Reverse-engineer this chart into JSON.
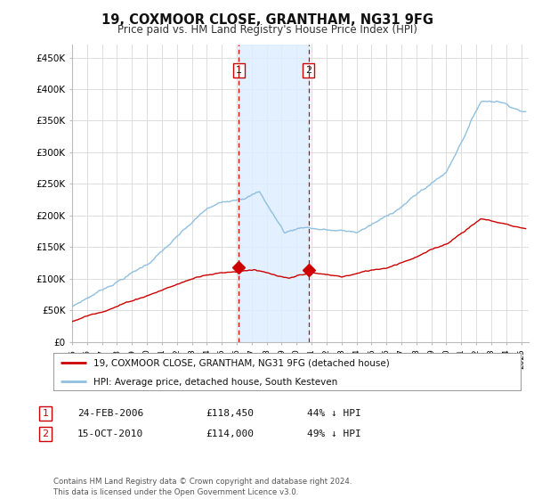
{
  "title": "19, COXMOOR CLOSE, GRANTHAM, NG31 9FG",
  "subtitle": "Price paid vs. HM Land Registry's House Price Index (HPI)",
  "ylabel_ticks": [
    "£0",
    "£50K",
    "£100K",
    "£150K",
    "£200K",
    "£250K",
    "£300K",
    "£350K",
    "£400K",
    "£450K"
  ],
  "ytick_values": [
    0,
    50000,
    100000,
    150000,
    200000,
    250000,
    300000,
    350000,
    400000,
    450000
  ],
  "ylim": [
    0,
    470000
  ],
  "xlim_start": 1995.0,
  "xlim_end": 2025.5,
  "hpi_color": "#90bfe0",
  "price_color": "#cc0000",
  "sale1_date": 2006.14,
  "sale1_price": 118450,
  "sale2_date": 2010.79,
  "sale2_price": 114000,
  "sale1_label": "1",
  "sale2_label": "2",
  "vline_color": "#cc0000",
  "shade_color": "#ddeeff",
  "legend_label1": "19, COXMOOR CLOSE, GRANTHAM, NG31 9FG (detached house)",
  "legend_label2": "HPI: Average price, detached house, South Kesteven",
  "table_row1": [
    "1",
    "24-FEB-2006",
    "£118,450",
    "44% ↓ HPI"
  ],
  "table_row2": [
    "2",
    "15-OCT-2010",
    "£114,000",
    "49% ↓ HPI"
  ],
  "footer": "Contains HM Land Registry data © Crown copyright and database right 2024.\nThis data is licensed under the Open Government Licence v3.0.",
  "bg_color": "#ffffff",
  "grid_color": "#dddddd",
  "xtick_years": [
    1995,
    1996,
    1997,
    1998,
    1999,
    2000,
    2001,
    2002,
    2003,
    2004,
    2005,
    2006,
    2007,
    2008,
    2009,
    2010,
    2011,
    2012,
    2013,
    2014,
    2015,
    2016,
    2017,
    2018,
    2019,
    2020,
    2021,
    2022,
    2023,
    2024,
    2025
  ]
}
